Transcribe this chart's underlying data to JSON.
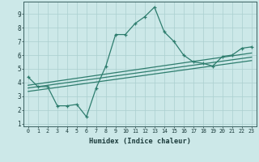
{
  "xlabel": "Humidex (Indice chaleur)",
  "ylabel": "",
  "background_color": "#cce8e8",
  "grid_color": "#aacfcf",
  "line_color": "#2e7d6e",
  "xlim": [
    -0.5,
    23.5
  ],
  "ylim": [
    0.8,
    9.9
  ],
  "xticks": [
    0,
    1,
    2,
    3,
    4,
    5,
    6,
    7,
    8,
    9,
    10,
    11,
    12,
    13,
    14,
    15,
    16,
    17,
    18,
    19,
    20,
    21,
    22,
    23
  ],
  "yticks": [
    1,
    2,
    3,
    4,
    5,
    6,
    7,
    8,
    9
  ],
  "line1_x": [
    0,
    1,
    2,
    3,
    4,
    5,
    6,
    7,
    8,
    9,
    10,
    11,
    12,
    13,
    14,
    15,
    16,
    17,
    18,
    19,
    20,
    21,
    22,
    23
  ],
  "line1_y": [
    4.4,
    3.7,
    3.7,
    2.3,
    2.3,
    2.4,
    1.5,
    3.6,
    5.2,
    7.5,
    7.5,
    8.3,
    8.8,
    9.5,
    7.7,
    7.0,
    6.0,
    5.5,
    5.4,
    5.2,
    5.9,
    6.0,
    6.5,
    6.6
  ],
  "line2_x": [
    0,
    23
  ],
  "line2_y": [
    3.8,
    6.15
  ],
  "line3_x": [
    0,
    23
  ],
  "line3_y": [
    3.6,
    5.85
  ],
  "line4_x": [
    0,
    23
  ],
  "line4_y": [
    3.35,
    5.6
  ]
}
